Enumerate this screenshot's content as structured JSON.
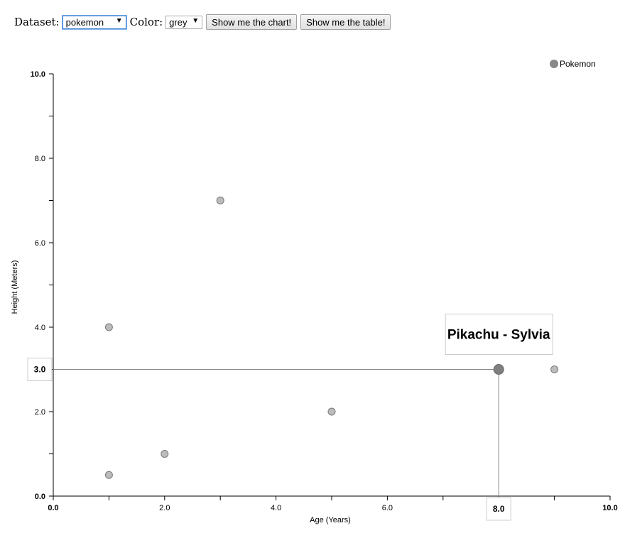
{
  "controls": {
    "dataset_label": "Dataset:",
    "dataset_value": "pokemon",
    "color_label": "Color:",
    "color_value": "grey",
    "chart_button": "Show me the chart!",
    "table_button": "Show me the table!"
  },
  "chart_data": {
    "type": "scatter",
    "xlabel": "Age (Years)",
    "ylabel": "Height (Meters)",
    "xlim": [
      0,
      10
    ],
    "ylim": [
      0,
      10
    ],
    "x_ticks": [
      0,
      1,
      2,
      3,
      4,
      5,
      6,
      7,
      8,
      9,
      10
    ],
    "x_tick_labels": [
      "0.0",
      "",
      "2.0",
      "",
      "4.0",
      "",
      "6.0",
      "",
      "",
      "",
      "10.0"
    ],
    "y_ticks": [
      0,
      1,
      2,
      3,
      4,
      5,
      6,
      7,
      8,
      9,
      10
    ],
    "y_tick_labels": [
      "0.0",
      "",
      "2.0",
      "",
      "4.0",
      "",
      "6.0",
      "",
      "8.0",
      "",
      "10.0"
    ],
    "series": [
      {
        "name": "Pokemon",
        "color": "#888888",
        "points": [
          {
            "x": 1,
            "y": 0.5
          },
          {
            "x": 2,
            "y": 1
          },
          {
            "x": 1,
            "y": 4
          },
          {
            "x": 3,
            "y": 7
          },
          {
            "x": 5,
            "y": 2
          },
          {
            "x": 9,
            "y": 3
          },
          {
            "x": 8,
            "y": 3,
            "highlighted": true,
            "label": "Pikachu - Sylvia"
          }
        ]
      }
    ],
    "legend_position": "top-right",
    "grid": false,
    "hover": {
      "x_label": "8.0",
      "y_label": "3.0",
      "tooltip": "Pikachu - Sylvia"
    }
  }
}
